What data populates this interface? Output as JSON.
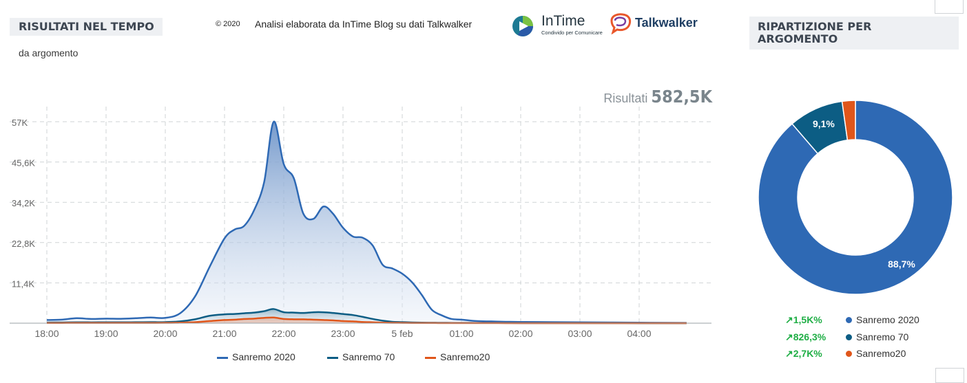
{
  "header": {
    "left_title": "RISULTATI NEL TEMPO",
    "subtitle": "da argomento",
    "credit_year": "© 2020",
    "credit_text": "Analisi elaborata da InTime Blog su dati Talkwalker",
    "intime_name": "InTime",
    "intime_tagline": "Condivido per Comunicare",
    "talkwalker_name": "Talkwalker",
    "right_title": "RIPARTIZIONE PER ARGOMENTO"
  },
  "total": {
    "label": "Risultati",
    "value": "582,5K"
  },
  "colors": {
    "sanremo2020": "#2e69b4",
    "sanremo70": "#0c5d84",
    "sanremo20": "#e0561a",
    "positive": "#1fae45"
  },
  "chart_data": [
    {
      "type": "area",
      "title": "RISULTATI NEL TEMPO",
      "x_ticks": [
        "18:00",
        "19:00",
        "20:00",
        "21:00",
        "22:00",
        "23:00",
        "5 feb",
        "01:00",
        "02:00",
        "03:00",
        "04:00"
      ],
      "y_ticks": [
        "11,4K",
        "22,8K",
        "34,2K",
        "45,6K",
        "57K"
      ],
      "ylim": [
        0,
        59000
      ],
      "grid": true,
      "legend_position": "bottom",
      "x_hours": [
        18.0,
        18.25,
        18.5,
        18.75,
        19.0,
        19.25,
        19.5,
        19.75,
        20.0,
        20.25,
        20.5,
        20.75,
        21.0,
        21.17,
        21.33,
        21.5,
        21.67,
        21.83,
        22.0,
        22.17,
        22.33,
        22.5,
        22.67,
        22.83,
        23.0,
        23.17,
        23.33,
        23.5,
        23.67,
        23.83,
        24.0,
        24.17,
        24.33,
        24.5,
        24.67,
        24.83,
        25.0,
        25.25,
        25.5,
        25.75,
        26.0,
        26.5,
        27.0,
        27.5,
        28.0,
        28.5,
        28.8
      ],
      "series": [
        {
          "name": "Sanremo 2020",
          "values": [
            900,
            1000,
            1400,
            1200,
            1300,
            1250,
            1400,
            1600,
            1500,
            2800,
            7500,
            16000,
            24000,
            26500,
            27500,
            32000,
            40000,
            57000,
            45000,
            41000,
            31000,
            29500,
            33000,
            31000,
            27000,
            24500,
            24200,
            22000,
            16500,
            15500,
            14000,
            11500,
            8000,
            3800,
            2200,
            1200,
            1000,
            600,
            500,
            400,
            350,
            300,
            250,
            200,
            150,
            100,
            80
          ]
        },
        {
          "name": "Sanremo 70",
          "values": [
            180,
            200,
            250,
            230,
            250,
            240,
            260,
            280,
            300,
            500,
            1100,
            2100,
            2500,
            2600,
            2800,
            3000,
            3400,
            4000,
            3100,
            3000,
            2900,
            3100,
            3100,
            2900,
            2600,
            2300,
            1800,
            1200,
            700,
            400,
            300,
            200,
            150,
            120,
            100,
            80,
            70,
            60,
            50,
            40,
            30,
            25,
            20,
            15,
            10,
            8,
            5
          ]
        },
        {
          "name": "Sanremo20",
          "values": [
            50,
            60,
            70,
            65,
            70,
            70,
            75,
            80,
            90,
            150,
            300,
            600,
            900,
            1000,
            1200,
            1300,
            1500,
            1600,
            1200,
            1100,
            1100,
            1000,
            900,
            800,
            600,
            500,
            350,
            250,
            150,
            100,
            80,
            60,
            50,
            40,
            30,
            25,
            20,
            18,
            15,
            12,
            10,
            8,
            6,
            5,
            4,
            3,
            2
          ]
        }
      ]
    },
    {
      "type": "pie",
      "title": "RIPARTIZIONE PER ARGOMENTO",
      "slices": [
        {
          "name": "Sanremo 2020",
          "percent": 88.7,
          "label": "88,7%",
          "change": "1,5K%"
        },
        {
          "name": "Sanremo 70",
          "percent": 9.1,
          "label": "9,1%",
          "change": "826,3%"
        },
        {
          "name": "Sanremo20",
          "percent": 2.2,
          "label": "",
          "change": "2,7K%"
        }
      ]
    }
  ]
}
